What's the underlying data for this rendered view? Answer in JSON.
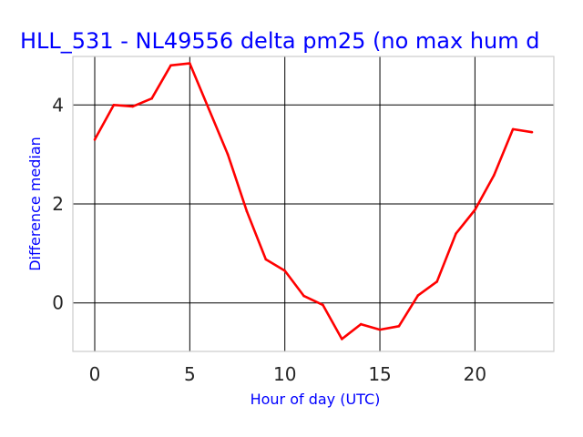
{
  "colors": {
    "title": "#0000ff",
    "axis_label": "#0000ff",
    "line": "#ff0000",
    "grid": "#000000",
    "frame": "#cccccc",
    "tick_text": "#262626"
  },
  "chart_data": {
    "type": "line",
    "title": "HLL_531 - NL49556 delta pm25 (no max hum d",
    "xlabel": "Hour of day (UTC)",
    "ylabel": "Difference median",
    "xlim": [
      -1.15,
      24.15
    ],
    "ylim": [
      -0.98,
      4.98
    ],
    "xticks": [
      0,
      5,
      10,
      15,
      20
    ],
    "yticks": [
      0,
      2,
      4
    ],
    "grid": true,
    "series": [
      {
        "x": [
          0,
          1,
          2,
          3,
          4,
          5,
          6,
          7,
          8,
          9,
          10,
          11,
          12,
          13,
          14,
          15,
          16,
          17,
          18,
          19,
          20,
          21,
          22,
          23
        ],
        "values": [
          3.3,
          4.0,
          3.97,
          4.13,
          4.8,
          4.84,
          3.92,
          3.0,
          1.85,
          0.88,
          0.65,
          0.14,
          -0.04,
          -0.73,
          -0.43,
          -0.54,
          -0.47,
          0.15,
          0.43,
          1.4,
          1.88,
          2.58,
          3.51,
          3.45
        ]
      }
    ]
  }
}
